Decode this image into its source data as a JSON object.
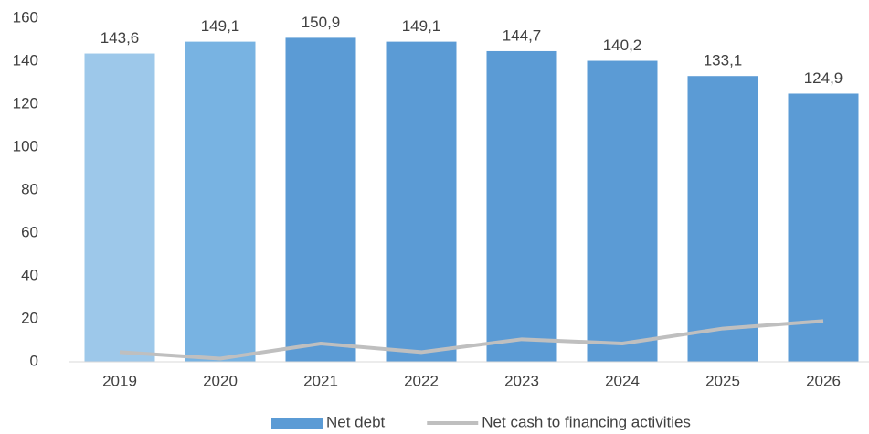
{
  "chart_data": {
    "type": "bar",
    "categories": [
      "2019",
      "2020",
      "2021",
      "2022",
      "2023",
      "2024",
      "2025",
      "2026"
    ],
    "series": [
      {
        "name": "Net debt",
        "type": "bar",
        "color": "#5b9bd5",
        "point_colors": [
          "#9dc8ea",
          "#78b3e2",
          "#5b9bd5",
          "#5b9bd5",
          "#5b9bd5",
          "#5b9bd5",
          "#5b9bd5",
          "#5b9bd5"
        ],
        "values": [
          143.6,
          149.1,
          150.9,
          149.1,
          144.7,
          140.2,
          133.1,
          124.9
        ],
        "value_labels": [
          "143,6",
          "149,1",
          "150,9",
          "149,1",
          "144,7",
          "140,2",
          "133,1",
          "124,9"
        ]
      },
      {
        "name": "Net cash to financing activities",
        "type": "line",
        "color": "#bfbfbf",
        "values": [
          4.5,
          1.5,
          8.5,
          4.5,
          10.5,
          8.5,
          15.5,
          19
        ]
      }
    ],
    "ylim": [
      0,
      160
    ],
    "yticks": [
      0,
      20,
      40,
      60,
      80,
      100,
      120,
      140,
      160
    ],
    "grid": false,
    "legend": "bottom"
  }
}
